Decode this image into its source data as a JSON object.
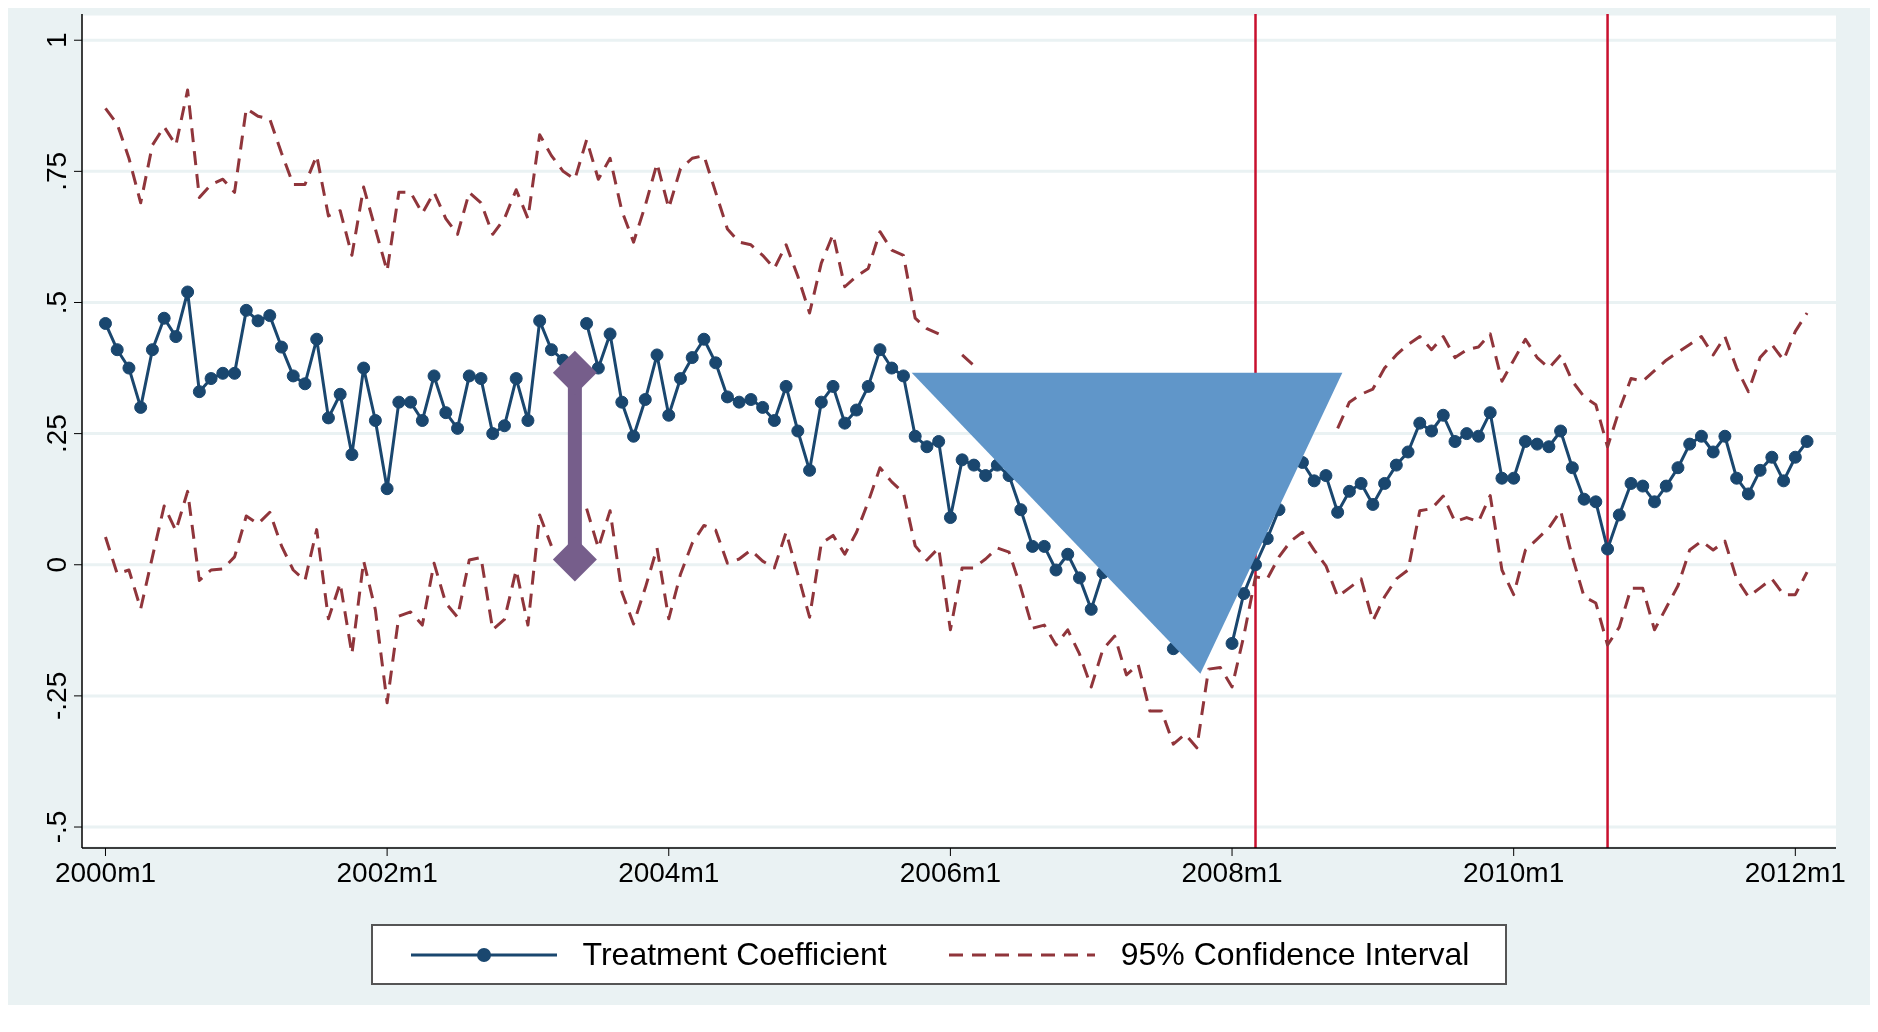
{
  "chart_data": {
    "type": "line",
    "x": [
      "2000-01",
      "2000-02",
      "2000-03",
      "2000-04",
      "2000-05",
      "2000-06",
      "2000-07",
      "2000-08",
      "2000-09",
      "2000-10",
      "2000-11",
      "2000-12",
      "2001-01",
      "2001-02",
      "2001-03",
      "2001-04",
      "2001-05",
      "2001-06",
      "2001-07",
      "2001-08",
      "2001-09",
      "2001-10",
      "2001-11",
      "2001-12",
      "2002-01",
      "2002-02",
      "2002-03",
      "2002-04",
      "2002-05",
      "2002-06",
      "2002-07",
      "2002-08",
      "2002-09",
      "2002-10",
      "2002-11",
      "2002-12",
      "2003-01",
      "2003-02",
      "2003-03",
      "2003-04",
      "2003-05",
      "2003-06",
      "2003-07",
      "2003-08",
      "2003-09",
      "2003-10",
      "2003-11",
      "2003-12",
      "2004-01",
      "2004-02",
      "2004-03",
      "2004-04",
      "2004-05",
      "2004-06",
      "2004-07",
      "2004-08",
      "2004-09",
      "2004-10",
      "2004-11",
      "2004-12",
      "2005-01",
      "2005-02",
      "2005-03",
      "2005-04",
      "2005-05",
      "2005-06",
      "2005-07",
      "2005-08",
      "2005-09",
      "2005-10",
      "2005-11",
      "2005-12",
      "2006-01",
      "2006-02",
      "2006-03",
      "2006-04",
      "2006-05",
      "2006-06",
      "2006-07",
      "2006-08",
      "2006-09",
      "2006-10",
      "2006-11",
      "2006-12",
      "2007-01",
      "2007-02",
      "2007-03",
      "2007-04",
      "2007-05",
      "2007-06",
      "2007-07",
      "2007-08",
      "2007-09",
      "2007-10",
      "2007-11",
      "2007-12",
      "2008-01",
      "2008-02",
      "2008-03",
      "2008-04",
      "2008-05",
      "2008-06",
      "2008-07",
      "2008-08",
      "2008-09",
      "2008-10",
      "2008-11",
      "2008-12",
      "2009-01",
      "2009-02",
      "2009-03",
      "2009-04",
      "2009-05",
      "2009-06",
      "2009-07",
      "2009-08",
      "2009-09",
      "2009-10",
      "2009-11",
      "2009-12",
      "2010-01",
      "2010-02",
      "2010-03",
      "2010-04",
      "2010-05",
      "2010-06",
      "2010-07",
      "2010-08",
      "2010-09",
      "2010-10",
      "2010-11",
      "2010-12",
      "2011-01",
      "2011-02",
      "2011-03",
      "2011-04",
      "2011-05",
      "2011-06",
      "2011-07",
      "2011-08",
      "2011-09",
      "2011-10",
      "2011-11",
      "2011-12",
      "2012-01",
      "2012-02"
    ],
    "series": [
      {
        "name": "Treatment Coefficient",
        "color": "#1a476f",
        "marker": "circle",
        "line_style": "solid",
        "values": [
          0.46,
          0.41,
          0.375,
          0.3,
          0.41,
          0.47,
          0.435,
          0.52,
          0.33,
          0.355,
          0.365,
          0.365,
          0.485,
          0.465,
          0.475,
          0.415,
          0.36,
          0.345,
          0.43,
          0.28,
          0.325,
          0.21,
          0.375,
          0.275,
          0.145,
          0.31,
          0.31,
          0.275,
          0.36,
          0.29,
          0.26,
          0.36,
          0.355,
          0.25,
          0.265,
          0.355,
          0.275,
          0.465,
          0.41,
          0.39,
          null,
          0.46,
          0.375,
          0.44,
          0.31,
          0.245,
          0.315,
          0.4,
          0.285,
          0.355,
          0.395,
          0.43,
          0.385,
          0.32,
          0.31,
          0.315,
          0.3,
          0.275,
          0.34,
          0.255,
          0.18,
          0.31,
          0.34,
          0.27,
          0.295,
          0.34,
          0.41,
          0.375,
          0.36,
          0.245,
          0.225,
          0.235,
          0.09,
          0.2,
          0.19,
          0.17,
          0.19,
          0.17,
          0.105,
          0.035,
          0.035,
          -0.01,
          0.02,
          -0.025,
          -0.085,
          -0.015,
          null,
          null,
          null,
          null,
          null,
          -0.16,
          null,
          null,
          null,
          null,
          -0.15,
          -0.055,
          0,
          0.05,
          0.105,
          null,
          0.195,
          0.16,
          0.17,
          0.1,
          0.14,
          0.155,
          0.115,
          0.155,
          0.19,
          0.215,
          0.27,
          0.255,
          0.285,
          0.235,
          0.25,
          0.245,
          0.29,
          0.165,
          0.165,
          0.235,
          0.23,
          0.225,
          0.255,
          0.185,
          0.125,
          0.12,
          0.03,
          0.095,
          0.155,
          0.15,
          0.12,
          0.15,
          0.185,
          0.23,
          0.245,
          0.215,
          0.245,
          0.165,
          0.135,
          0.18,
          0.205,
          0.16,
          0.205,
          0.235
        ]
      },
      {
        "name": "95% Confidence Interval",
        "color": "#90353b",
        "marker": "none",
        "line_style": "dashed",
        "values": [
          0.87,
          0.84,
          0.775,
          0.69,
          0.8,
          0.835,
          0.8,
          0.905,
          0.7,
          0.725,
          0.735,
          0.71,
          0.87,
          0.855,
          0.85,
          0.785,
          0.725,
          0.725,
          0.78,
          0.665,
          0.675,
          0.59,
          0.72,
          0.64,
          0.56,
          0.71,
          0.71,
          0.67,
          0.71,
          0.66,
          0.63,
          0.71,
          0.69,
          0.63,
          0.66,
          0.715,
          0.66,
          0.82,
          0.78,
          0.75,
          0.735,
          0.81,
          0.735,
          0.775,
          0.675,
          0.615,
          0.685,
          0.765,
          0.68,
          0.755,
          0.775,
          0.78,
          0.71,
          0.64,
          0.615,
          0.61,
          0.59,
          0.565,
          0.61,
          0.55,
          0.48,
          0.575,
          0.63,
          0.53,
          0.55,
          0.565,
          0.635,
          0.6,
          0.59,
          0.47,
          0.45,
          0.44,
          null,
          0.4,
          0.38,
          null,
          null,
          null,
          null,
          null,
          null,
          null,
          null,
          null,
          null,
          null,
          null,
          null,
          null,
          null,
          null,
          null,
          null,
          null,
          null,
          null,
          null,
          null,
          null,
          null,
          null,
          null,
          null,
          null,
          null,
          0.26,
          0.31,
          0.325,
          0.335,
          0.375,
          0.4,
          0.42,
          0.435,
          0.41,
          0.435,
          0.395,
          0.41,
          0.415,
          0.44,
          0.35,
          0.39,
          0.43,
          0.395,
          0.375,
          0.4,
          0.35,
          0.32,
          0.305,
          0.225,
          0.295,
          0.355,
          0.35,
          0.37,
          0.39,
          0.405,
          0.42,
          0.435,
          0.4,
          0.435,
          0.375,
          0.33,
          0.395,
          0.42,
          0.39,
          0.445,
          0.48
        ]
      },
      {
        "color": "#90353b",
        "marker": "none",
        "line_style": "dashed",
        "values": [
          0.053,
          -0.017,
          -0.01,
          -0.084,
          0.015,
          0.112,
          0.065,
          0.14,
          -0.03,
          -0.01,
          -0.008,
          0.015,
          0.093,
          0.078,
          0.1,
          0.036,
          -0.01,
          -0.03,
          0.067,
          -0.103,
          -0.035,
          -0.17,
          0.007,
          -0.086,
          -0.263,
          -0.098,
          -0.09,
          -0.115,
          0.003,
          -0.073,
          -0.1,
          0.009,
          0.014,
          -0.124,
          -0.104,
          -0.01,
          -0.115,
          0.095,
          0.036,
          null,
          null,
          0.107,
          0.032,
          0.103,
          -0.052,
          -0.113,
          -0.044,
          0.032,
          -0.103,
          -0.018,
          0.041,
          0.075,
          0.066,
          0.003,
          0.011,
          0.028,
          0.007,
          -0.006,
          0.062,
          -0.018,
          -0.1,
          0.041,
          0.056,
          0.02,
          0.062,
          0.12,
          0.185,
          0.158,
          0.137,
          0.036,
          0.009,
          0.032,
          -0.124,
          -0.006,
          -0.006,
          0.011,
          0.032,
          0.024,
          -0.044,
          -0.121,
          -0.115,
          -0.153,
          -0.124,
          -0.17,
          -0.233,
          -0.161,
          -0.136,
          -0.21,
          -0.19,
          -0.279,
          -0.279,
          -0.342,
          -0.323,
          -0.349,
          -0.199,
          -0.196,
          -0.233,
          -0.136,
          -0.023,
          -0.027,
          0.015,
          0.045,
          0.062,
          0.028,
          -0.002,
          -0.061,
          -0.044,
          -0.027,
          -0.107,
          -0.061,
          -0.027,
          -0.01,
          0.103,
          0.107,
          0.131,
          0.082,
          0.09,
          0.082,
          0.132,
          -0.01,
          -0.057,
          0.028,
          0.049,
          0.07,
          0.103,
          0.015,
          -0.061,
          -0.073,
          -0.153,
          -0.119,
          -0.045,
          -0.045,
          -0.124,
          -0.082,
          -0.04,
          0.028,
          0.045,
          0.028,
          0.045,
          -0.027,
          -0.061,
          -0.044,
          -0.027,
          -0.057,
          -0.057,
          -0.014
        ]
      }
    ],
    "xlim": [
      "1999-11",
      "2012-04-15"
    ],
    "xticks": [
      {
        "value": "2000-01",
        "label": "2000m1"
      },
      {
        "value": "2002-01",
        "label": "2002m1"
      },
      {
        "value": "2004-01",
        "label": "2004m1"
      },
      {
        "value": "2006-01",
        "label": "2006m1"
      },
      {
        "value": "2008-01",
        "label": "2008m1"
      },
      {
        "value": "2010-01",
        "label": "2010m1"
      },
      {
        "value": "2012-01",
        "label": "2012m1"
      }
    ],
    "ylim": [
      -0.54,
      1.05
    ],
    "yticks": [
      {
        "value": -0.5,
        "label": "-.5"
      },
      {
        "value": -0.25,
        "label": "-.25"
      },
      0,
      {
        "value": 0.25,
        "label": ".25"
      },
      {
        "value": 0.5,
        "label": ".5"
      },
      {
        "value": 0.75,
        "label": ".75"
      },
      1
    ],
    "ref_lines": [
      {
        "axis": "x",
        "value": "2008-03",
        "color": "#c8102e"
      },
      {
        "axis": "x",
        "value": "2010-09",
        "color": "#c8102e"
      }
    ],
    "grid": "y",
    "legend": "bottom"
  }
}
